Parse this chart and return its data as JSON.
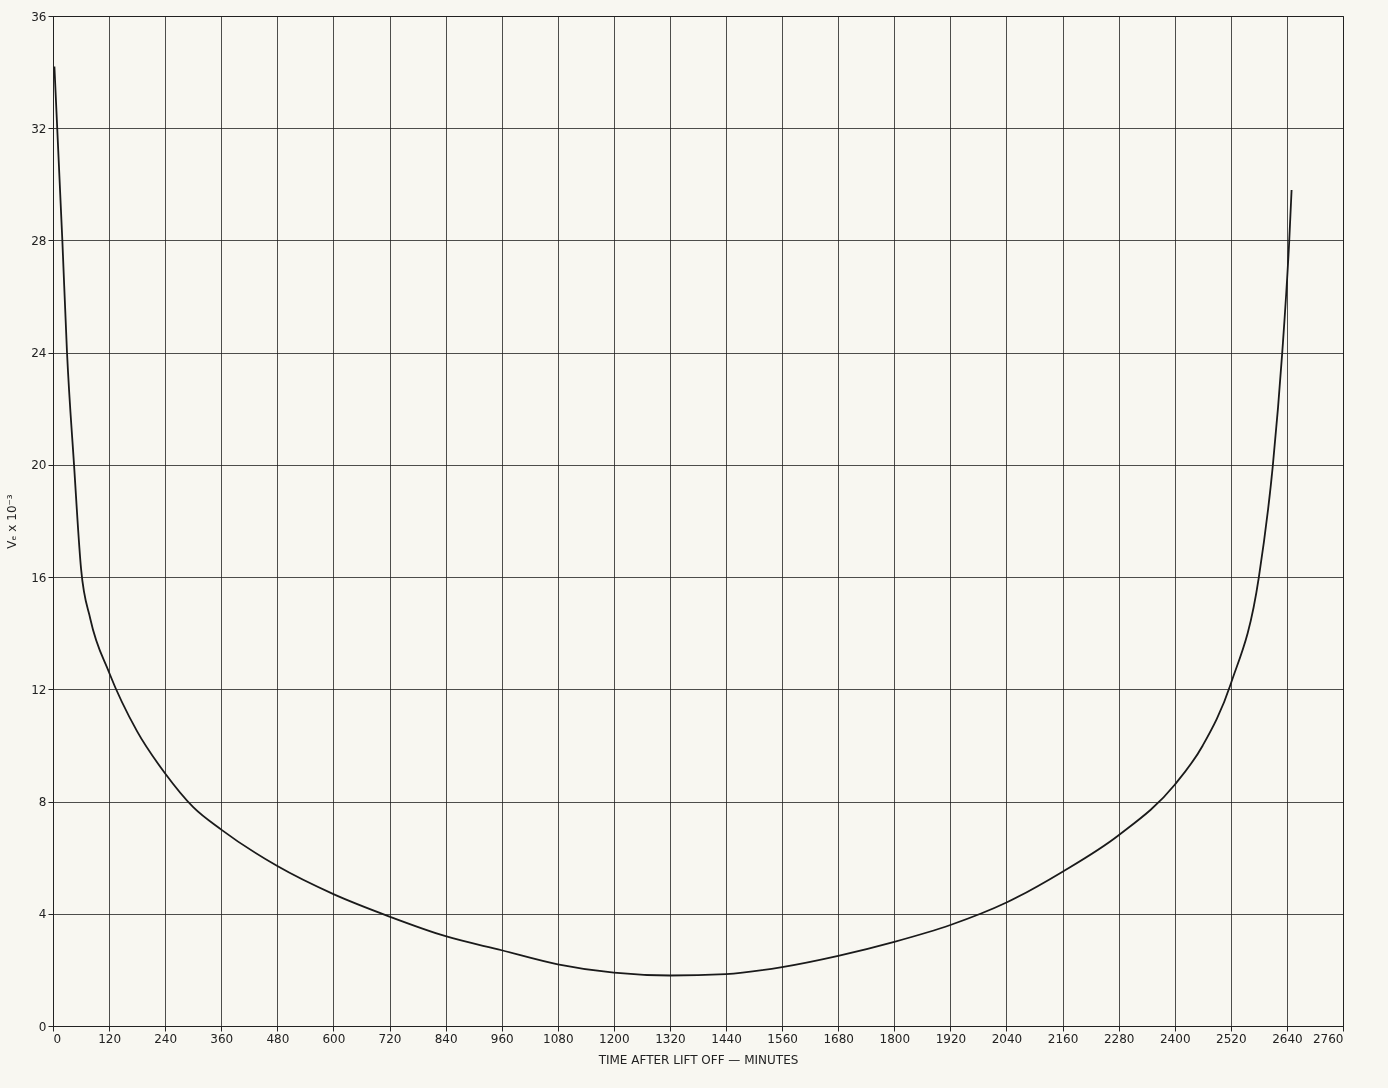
{
  "chart_data": {
    "type": "line",
    "xlabel": "TIME AFTER LIFT OFF — MINUTES",
    "ylabel": "Vₑ x 10⁻³",
    "x": [
      3,
      20,
      30,
      45,
      60,
      80,
      120,
      180,
      240,
      300,
      360,
      480,
      600,
      720,
      840,
      960,
      1080,
      1200,
      1320,
      1440,
      1560,
      1680,
      1800,
      1920,
      2040,
      2160,
      2280,
      2400,
      2460,
      2520,
      2580,
      2610,
      2630,
      2645,
      2650
    ],
    "series": [
      {
        "color": "#1a1a1a",
        "values": [
          34.2,
          28,
          24,
          20,
          16.3,
          14.5,
          12.6,
          10.5,
          9,
          7.8,
          7,
          5.7,
          4.7,
          3.9,
          3.2,
          2.7,
          2.2,
          1.9,
          1.8,
          1.85,
          2.1,
          2.5,
          3,
          3.6,
          4.4,
          5.5,
          6.8,
          8.6,
          10,
          12.2,
          16,
          20,
          24,
          28,
          29.8
        ]
      }
    ],
    "xlim": [
      0,
      2760
    ],
    "xticks": [
      0,
      120,
      240,
      360,
      480,
      600,
      720,
      840,
      960,
      1080,
      1200,
      1320,
      1440,
      1560,
      1680,
      1800,
      1920,
      2040,
      2160,
      2280,
      2400,
      2520,
      2640,
      2760
    ],
    "ylim": [
      0,
      36
    ],
    "yticks": [
      0,
      4,
      8,
      12,
      16,
      20,
      24,
      28,
      32,
      36
    ],
    "grid": true,
    "line_style": "solid",
    "marker": "none"
  }
}
